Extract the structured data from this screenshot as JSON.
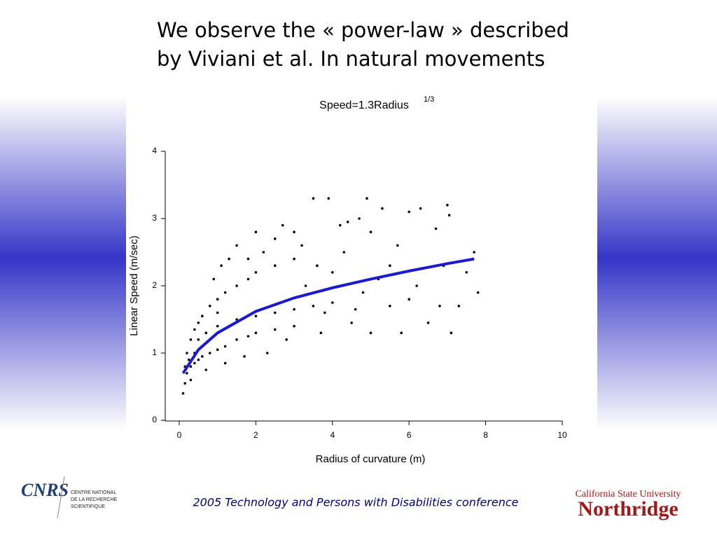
{
  "header": {
    "lines": [
      "We observe the « power-law » described",
      "by Viviani et al. In natural movements"
    ]
  },
  "chart_data": {
    "type": "scatter",
    "title": "Speed=1.3Radius",
    "title_superscript": "1/3",
    "x_label": "Radius of curvature (m)",
    "y_label": "Linear Speed (m/sec)",
    "xlim": [
      0,
      10
    ],
    "ylim": [
      0,
      4
    ],
    "xticks": [
      0,
      2,
      4,
      6,
      8,
      10
    ],
    "yticks": [
      0,
      1,
      2,
      3,
      4
    ],
    "series": [
      {
        "type": "scatter",
        "color": "#000000",
        "x": [
          0.1,
          0.15,
          0.2,
          0.3,
          0.4,
          0.5,
          0.6,
          0.8,
          1.0,
          1.2,
          1.5,
          1.8,
          2.0,
          2.5,
          3.0,
          0.2,
          0.3,
          0.4,
          0.5,
          0.6,
          0.8,
          1.0,
          1.2,
          1.5,
          1.8,
          2.0,
          2.5,
          3.0,
          0.5,
          1.0,
          1.5,
          2.0,
          2.5,
          3.0,
          3.5,
          4.0,
          3.5,
          3.9,
          4.9,
          5.3,
          6.0,
          6.3,
          7.0,
          7.05,
          6.7,
          7.1,
          7.8,
          7.7,
          6.5,
          5.8,
          5.0,
          4.5,
          4.8,
          5.5,
          4.2,
          4.4,
          3.0,
          2.7,
          1.5,
          1.3,
          0.9,
          1.1,
          2.2,
          5.2,
          6.2,
          6.8,
          7.3,
          7.5,
          6.9,
          5.7,
          4.0,
          3.3,
          2.8,
          3.7,
          2.3,
          1.7,
          1.2,
          0.7,
          0.3,
          4.6,
          5.5,
          6.0,
          3.8,
          4.3,
          3.2,
          2.5,
          3.6,
          5.0,
          4.7,
          2.0,
          1.8,
          1.0,
          0.7,
          0.4,
          0.25,
          0.15
        ],
        "values": [
          0.4,
          0.55,
          0.7,
          0.8,
          0.85,
          0.9,
          0.95,
          1.0,
          1.05,
          1.1,
          1.2,
          1.25,
          1.3,
          1.35,
          1.4,
          1.0,
          1.2,
          1.35,
          1.45,
          1.55,
          1.7,
          1.8,
          1.9,
          2.0,
          2.1,
          2.2,
          2.3,
          2.4,
          1.2,
          1.4,
          1.5,
          1.55,
          1.6,
          1.65,
          1.7,
          1.75,
          3.3,
          3.3,
          3.3,
          3.15,
          3.1,
          3.15,
          3.2,
          3.05,
          2.85,
          1.3,
          1.9,
          2.5,
          1.45,
          1.3,
          1.3,
          1.45,
          1.9,
          2.3,
          2.9,
          2.95,
          2.8,
          2.9,
          2.6,
          2.4,
          2.1,
          2.3,
          2.5,
          2.1,
          2.0,
          1.7,
          1.7,
          2.2,
          2.3,
          2.6,
          2.2,
          2.0,
          1.2,
          1.3,
          1.0,
          0.95,
          0.85,
          0.75,
          0.6,
          1.65,
          1.7,
          1.8,
          1.6,
          2.5,
          2.6,
          2.7,
          2.3,
          2.8,
          3.0,
          2.8,
          2.4,
          1.6,
          1.3,
          1.0,
          0.9,
          0.8
        ]
      },
      {
        "type": "line",
        "color": "#1a1ad0",
        "x": [
          0.1,
          0.5,
          1,
          2,
          3,
          4,
          5,
          6,
          7,
          7.7
        ],
        "values": [
          0.7,
          1.05,
          1.3,
          1.62,
          1.82,
          1.97,
          2.1,
          2.22,
          2.33,
          2.4
        ]
      }
    ]
  },
  "footer": {
    "conference": "2005 Technology and Persons with Disabilities conference"
  },
  "logos": {
    "cnrs": "CNRS",
    "cnrs_name": [
      "CENTRE NATIONAL",
      "DE LA RECHERCHE",
      "SCIENTIFIQUE"
    ],
    "csun_top": "California State University",
    "csun_name": "Northridge"
  }
}
